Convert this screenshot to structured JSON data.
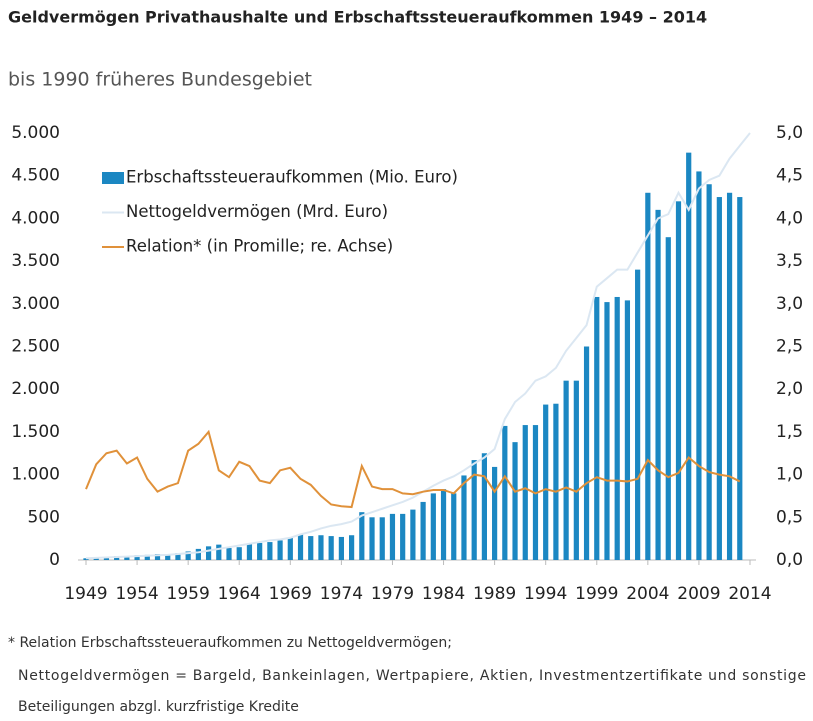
{
  "chart_data": {
    "type": "bar-line",
    "title": "Geldvermögen Privathaushalte und Erbschaftssteueraufkommen 1949 – 2014",
    "subtitle": "bis 1990 früheres Bundesgebiet",
    "footnotes": [
      "* Relation Erbschaftssteueraufkommen zu Nettogeldvermögen;",
      "Nettogeldvermögen = Bargeld, Bankeinlagen, Wertpapiere, Aktien, Investmentzertifikate und sonstige",
      "Beteiligungen abzgl. kurzfristige Kredite"
    ],
    "x": [
      1949,
      1950,
      1951,
      1952,
      1953,
      1954,
      1955,
      1956,
      1957,
      1958,
      1959,
      1960,
      1961,
      1962,
      1963,
      1964,
      1965,
      1966,
      1967,
      1968,
      1969,
      1970,
      1971,
      1972,
      1973,
      1974,
      1975,
      1976,
      1977,
      1978,
      1979,
      1980,
      1981,
      1982,
      1983,
      1984,
      1985,
      1986,
      1987,
      1988,
      1989,
      1990,
      1991,
      1992,
      1993,
      1994,
      1995,
      1996,
      1997,
      1998,
      1999,
      2000,
      2001,
      2002,
      2003,
      2004,
      2005,
      2006,
      2007,
      2008,
      2009,
      2010,
      2011,
      2012,
      2013,
      2014
    ],
    "series": [
      {
        "name": "Erbschaftssteueraufkommen (Mio. Euro)",
        "kind": "bar",
        "axis": "y",
        "color": "#1b87c2",
        "values": [
          20,
          25,
          30,
          45,
          45,
          55,
          60,
          70,
          70,
          80,
          100,
          130,
          160,
          180,
          140,
          150,
          190,
          200,
          210,
          230,
          260,
          300,
          280,
          290,
          280,
          270,
          290,
          560,
          500,
          500,
          540,
          540,
          590,
          680,
          780,
          830,
          780,
          990,
          1170,
          1250,
          1090,
          1570,
          1380,
          1580,
          1580,
          1820,
          1830,
          2100,
          2100,
          2500,
          3080,
          3020,
          3080,
          3040,
          3400,
          4300,
          4100,
          3780,
          4200,
          4770,
          4550,
          4400,
          4250,
          4300,
          4250,
          null
        ]
      },
      {
        "name": "Nettogeldvermögen (Mrd. Euro)",
        "kind": "line",
        "axis": "y",
        "color": "#dbe7f2",
        "values": [
          20,
          25,
          30,
          35,
          40,
          45,
          50,
          55,
          60,
          70,
          80,
          90,
          110,
          130,
          150,
          170,
          190,
          210,
          230,
          240,
          260,
          300,
          330,
          370,
          400,
          420,
          450,
          520,
          560,
          600,
          640,
          680,
          730,
          800,
          870,
          930,
          980,
          1050,
          1130,
          1200,
          1300,
          1650,
          1850,
          1950,
          2100,
          2150,
          2250,
          2450,
          2600,
          2750,
          3200,
          3300,
          3400,
          3400,
          3600,
          3800,
          4000,
          4050,
          4300,
          4100,
          4350,
          4450,
          4500,
          4700,
          4850,
          5000
        ]
      },
      {
        "name": "Relation* (in Promille; re. Achse)",
        "kind": "line",
        "axis": "y2",
        "color": "#e0913a",
        "values": [
          0.83,
          1.12,
          1.25,
          1.28,
          1.13,
          1.2,
          0.95,
          0.8,
          0.86,
          0.9,
          1.28,
          1.36,
          1.5,
          1.05,
          0.97,
          1.15,
          1.1,
          0.93,
          0.9,
          1.05,
          1.08,
          0.95,
          0.88,
          0.75,
          0.65,
          0.63,
          0.62,
          1.1,
          0.86,
          0.83,
          0.83,
          0.78,
          0.77,
          0.8,
          0.82,
          0.82,
          0.78,
          0.9,
          1.0,
          0.98,
          0.8,
          0.98,
          0.8,
          0.84,
          0.78,
          0.83,
          0.8,
          0.85,
          0.8,
          0.9,
          0.97,
          0.93,
          0.93,
          0.92,
          0.95,
          1.17,
          1.05,
          0.97,
          1.02,
          1.2,
          1.1,
          1.03,
          1.0,
          0.98,
          0.92,
          null
        ]
      }
    ],
    "xlim": [
      1949,
      2014
    ],
    "xticks": [
      1949,
      1954,
      1959,
      1964,
      1969,
      1974,
      1979,
      1984,
      1989,
      1994,
      1999,
      2004,
      2009,
      2014
    ],
    "ylim": [
      0,
      5000
    ],
    "yticks": [
      0,
      {
        "value": 500,
        "label": "500"
      },
      {
        "value": 1000,
        "label": "1.000"
      },
      {
        "value": 1500,
        "label": "1.500"
      },
      {
        "value": 2000,
        "label": "2.000"
      },
      {
        "value": 2500,
        "label": "2.500"
      },
      {
        "value": 3000,
        "label": "3.000"
      },
      {
        "value": 3500,
        "label": "3.500"
      },
      {
        "value": 4000,
        "label": "4.000"
      },
      {
        "value": 4500,
        "label": "4.500"
      },
      {
        "value": 5000,
        "label": "5.000"
      }
    ],
    "y2lim": [
      0,
      5
    ],
    "y2ticks": [
      {
        "value": 0,
        "label": "0,0"
      },
      {
        "value": 0.5,
        "label": "0,5"
      },
      {
        "value": 1,
        "label": "1,0"
      },
      {
        "value": 1.5,
        "label": "1,5"
      },
      {
        "value": 2,
        "label": "2,0"
      },
      {
        "value": 2.5,
        "label": "2,5"
      },
      {
        "value": 3,
        "label": "3,0"
      },
      {
        "value": 3.5,
        "label": "3,5"
      },
      {
        "value": 4,
        "label": "4,0"
      },
      {
        "value": 4.5,
        "label": "4,5"
      },
      {
        "value": 5,
        "label": "5,0"
      }
    ],
    "legend": "top-left"
  }
}
